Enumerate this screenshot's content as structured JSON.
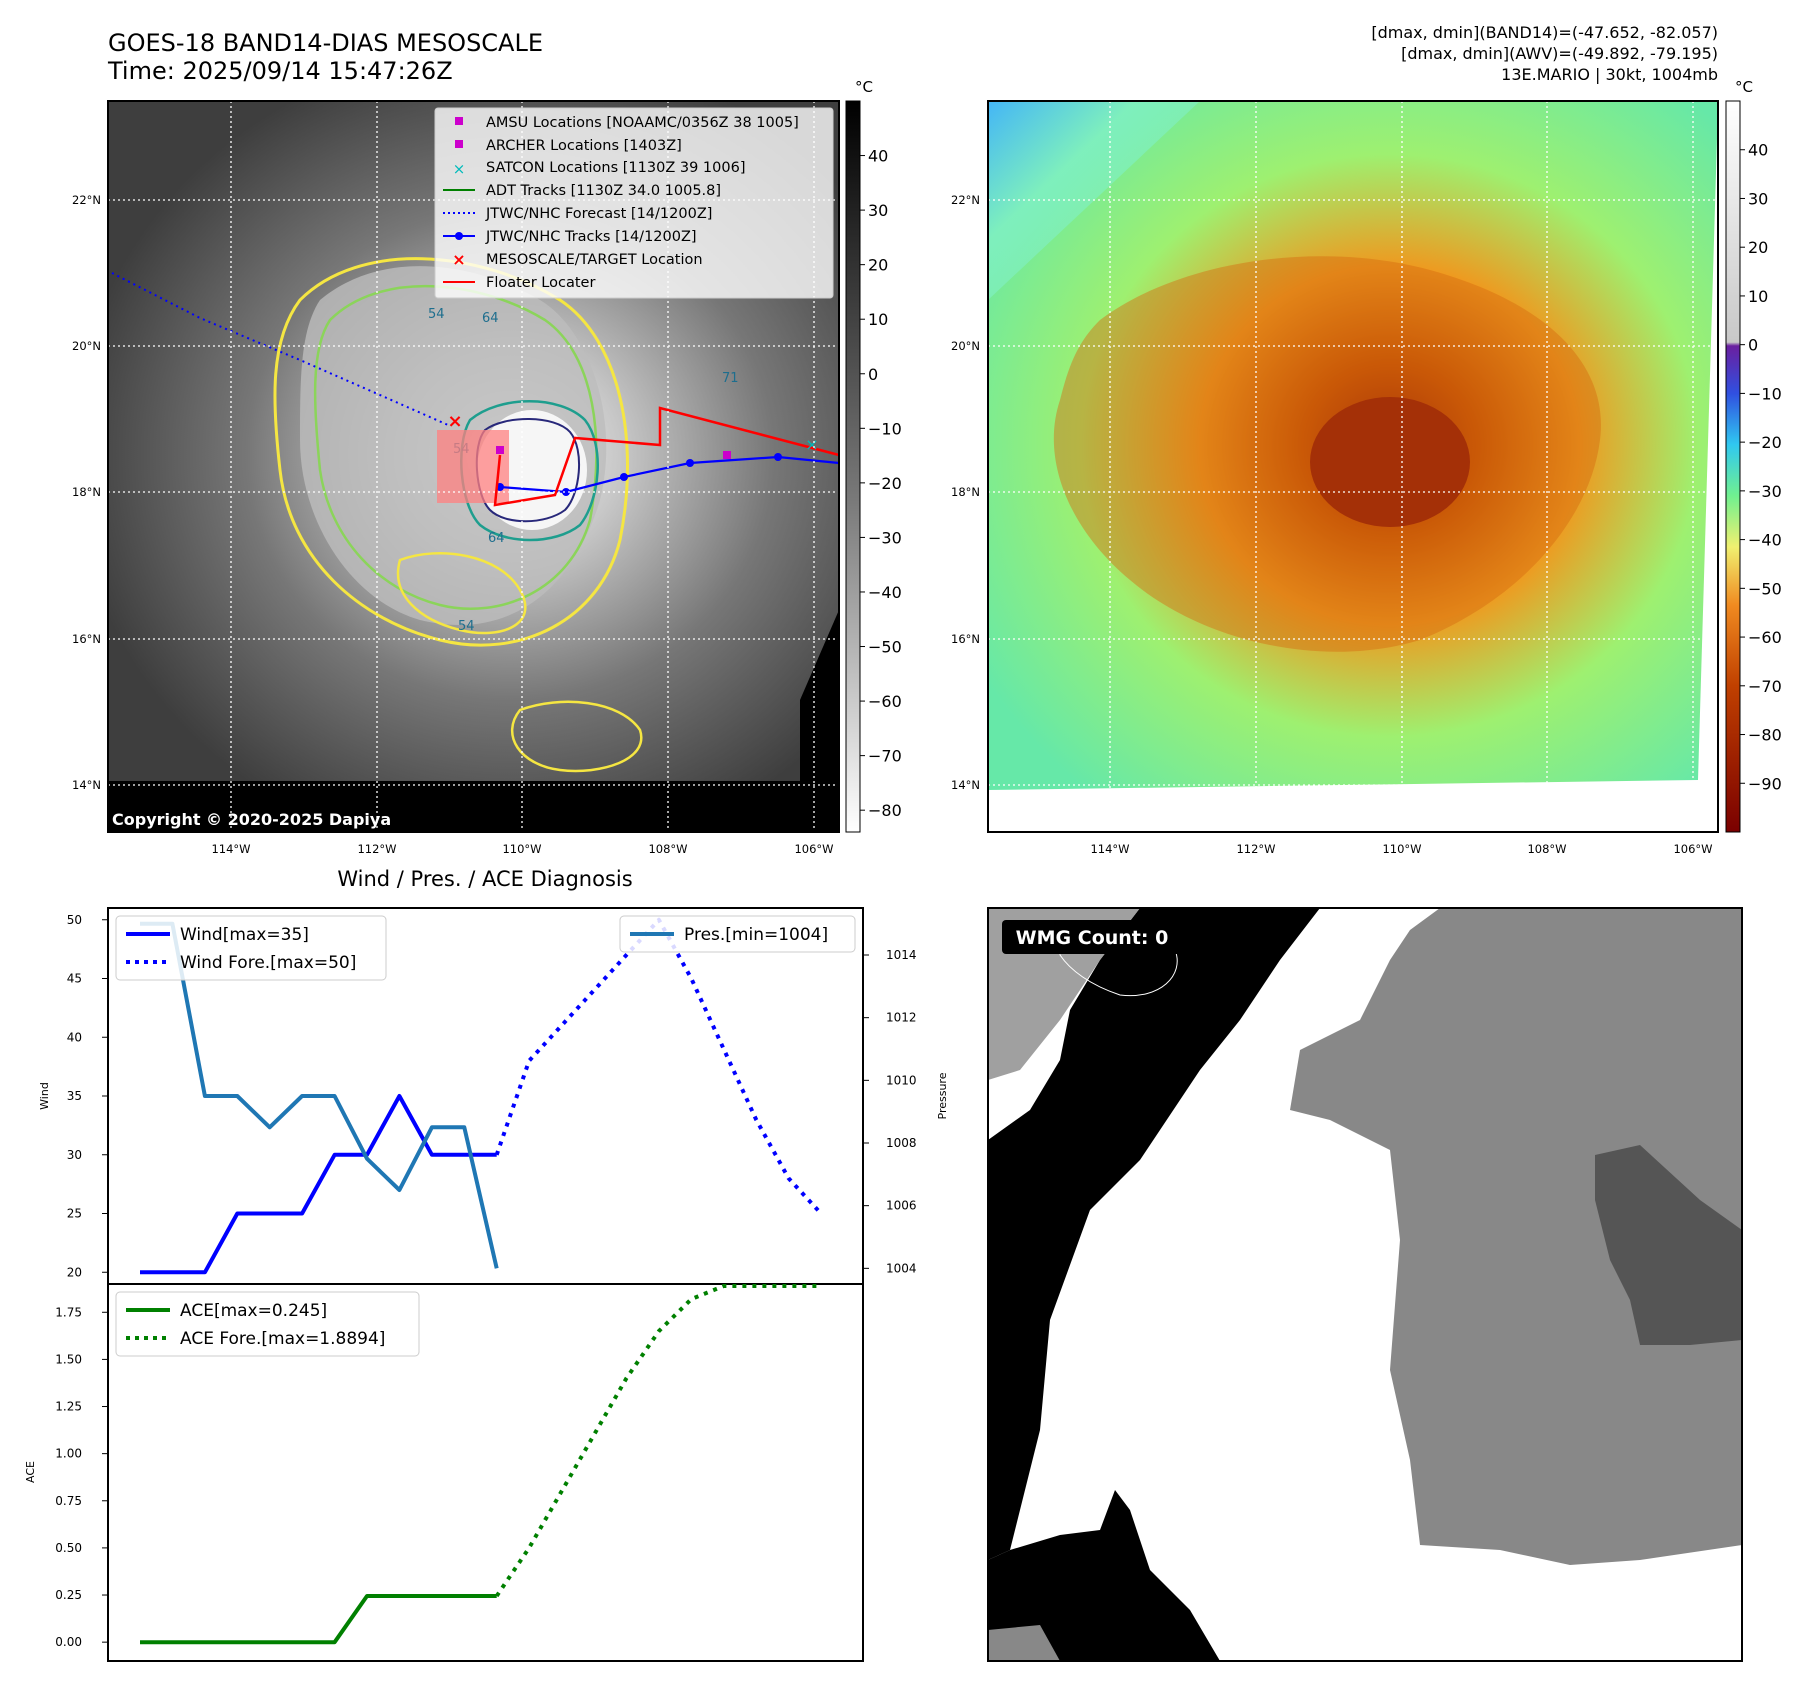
{
  "header": {
    "title_line1": "GOES-18 BAND14-DIAS MESOSCALE",
    "title_line2": "Time: 2025/09/14 15:47:26Z",
    "info_line1": "[dmax, dmin](BAND14)=(-47.652, -82.057)",
    "info_line2": "[dmax, dmin](AWV)=(-49.892, -79.195)",
    "info_line3": "13E.MARIO | 30kt, 1004mb"
  },
  "map": {
    "lat_labels": [
      "22°N",
      "20°N",
      "18°N",
      "16°N",
      "14°N"
    ],
    "lat_values": [
      22,
      20,
      18,
      16,
      14
    ],
    "lon_labels": [
      "114°W",
      "112°W",
      "110°W",
      "108°W",
      "106°W"
    ],
    "lon_values": [
      -114,
      -112,
      -110,
      -108,
      -106
    ],
    "copyright": "Copyright © 2020-2025 Dapiya",
    "contour_labels": [
      "54",
      "64",
      "54",
      "64",
      "54",
      "71"
    ],
    "legend": [
      {
        "label": "AMSU Locations [NOAAMC/0356Z 38 1005]",
        "symbol": "square",
        "color": "#cc00cc"
      },
      {
        "label": "ARCHER Locations [1403Z]",
        "symbol": "square",
        "color": "#cc00cc"
      },
      {
        "label": "SATCON Locations [1130Z 39 1006]",
        "symbol": "x",
        "color": "#00bbbb"
      },
      {
        "label": "ADT Tracks [1130Z 34.0 1005.8]",
        "symbol": "line",
        "color": "#008000"
      },
      {
        "label": "JTWC/NHC Forecast [14/1200Z]",
        "symbol": "dotted",
        "color": "#0000ff"
      },
      {
        "label": "JTWC/NHC Tracks [14/1200Z]",
        "symbol": "line-dot",
        "color": "#0000ff"
      },
      {
        "label": "MESOSCALE/TARGET Location",
        "symbol": "x",
        "color": "#ff0000"
      },
      {
        "label": "Floater Locater",
        "symbol": "line",
        "color": "#ff0000"
      }
    ]
  },
  "colorbar_left": {
    "unit": "°C",
    "ticks": [
      "40",
      "30",
      "20",
      "10",
      "0",
      "−10",
      "−20",
      "−30",
      "−40",
      "−50",
      "−60",
      "−70",
      "−80"
    ],
    "tick_values": [
      40,
      30,
      20,
      10,
      0,
      -10,
      -20,
      -30,
      -40,
      -50,
      -60,
      -70,
      -80
    ],
    "range": [
      -84,
      50
    ]
  },
  "colorbar_right": {
    "unit": "°C",
    "ticks": [
      "40",
      "30",
      "20",
      "10",
      "0",
      "−10",
      "−20",
      "−30",
      "−40",
      "−50",
      "−60",
      "−70",
      "−80",
      "−90"
    ],
    "tick_values": [
      40,
      30,
      20,
      10,
      0,
      -10,
      -20,
      -30,
      -40,
      -50,
      -60,
      -70,
      -80,
      -90
    ],
    "range": [
      -100,
      50
    ]
  },
  "diagnosis": {
    "title": "Wind / Pres. / ACE Diagnosis",
    "wind_ylabel": "Wind",
    "pres_ylabel": "Pressure",
    "ace_ylabel": "ACE",
    "wind_ticks": [
      "50",
      "45",
      "40",
      "35",
      "30",
      "25",
      "20"
    ],
    "pres_ticks": [
      "1014",
      "1012",
      "1010",
      "1008",
      "1006",
      "1004"
    ],
    "ace_ticks": [
      "1.75",
      "1.50",
      "1.25",
      "1.00",
      "0.75",
      "0.50",
      "0.25",
      "0.00"
    ],
    "legend_wind": "Wind[max=35]",
    "legend_wind_fore": "Wind Fore.[max=50]",
    "legend_pres": "Pres.[min=1004]",
    "legend_ace": "ACE[max=0.245]",
    "legend_ace_fore": "ACE Fore.[max=1.8894]"
  },
  "wmg": {
    "label": "WMG Count: 0"
  },
  "chart_data": [
    {
      "type": "line",
      "name": "wind",
      "x": [
        0,
        1,
        2,
        3,
        4,
        5,
        6,
        7,
        8,
        9,
        10,
        11,
        12,
        13,
        14,
        15,
        16,
        17,
        18,
        19,
        20,
        21
      ],
      "series": [
        {
          "name": "Wind[max=35]",
          "color": "#0000ff",
          "style": "solid",
          "x": [
            0,
            1,
            2,
            3,
            4,
            5,
            6,
            7,
            8,
            9,
            10,
            11
          ],
          "values": [
            20,
            20,
            20,
            25,
            25,
            25,
            30,
            30,
            35,
            30,
            30,
            30
          ]
        },
        {
          "name": "Wind Fore.[max=50]",
          "color": "#0000ff",
          "style": "dotted",
          "x": [
            11,
            12,
            13,
            14,
            15,
            16,
            17,
            18,
            19,
            20,
            21
          ],
          "values": [
            30,
            38,
            41,
            44,
            47,
            50,
            45,
            39,
            33,
            28,
            25
          ]
        },
        {
          "name": "Pres.[min=1004]",
          "color": "#1f77b4",
          "style": "solid",
          "axis": "right",
          "x": [
            0,
            1,
            2,
            3,
            4,
            5,
            6,
            7,
            8,
            9,
            10,
            11
          ],
          "values": [
            1015,
            1015,
            1009.5,
            1009.5,
            1008.5,
            1009.5,
            1009.5,
            1007.5,
            1006.5,
            1008.5,
            1008.5,
            1004
          ]
        }
      ],
      "ylim": [
        19,
        51
      ],
      "y2lim": [
        1003.5,
        1015.5
      ],
      "ylabel": "Wind",
      "y2label": "Pressure"
    },
    {
      "type": "line",
      "name": "ace",
      "series": [
        {
          "name": "ACE[max=0.245]",
          "color": "#008000",
          "style": "solid",
          "x": [
            0,
            1,
            2,
            3,
            4,
            5,
            6,
            7,
            8,
            9,
            10,
            11
          ],
          "values": [
            0,
            0,
            0,
            0,
            0,
            0,
            0,
            0.245,
            0.245,
            0.245,
            0.245,
            0.245
          ]
        },
        {
          "name": "ACE Fore.[max=1.8894]",
          "color": "#008000",
          "style": "dotted",
          "x": [
            11,
            12,
            13,
            14,
            15,
            16,
            17,
            18,
            19,
            20,
            21
          ],
          "values": [
            0.245,
            0.5,
            0.8,
            1.1,
            1.4,
            1.65,
            1.82,
            1.8894,
            1.8894,
            1.8894,
            1.8894
          ]
        }
      ],
      "ylim": [
        -0.1,
        1.9
      ],
      "ylabel": "ACE"
    }
  ]
}
